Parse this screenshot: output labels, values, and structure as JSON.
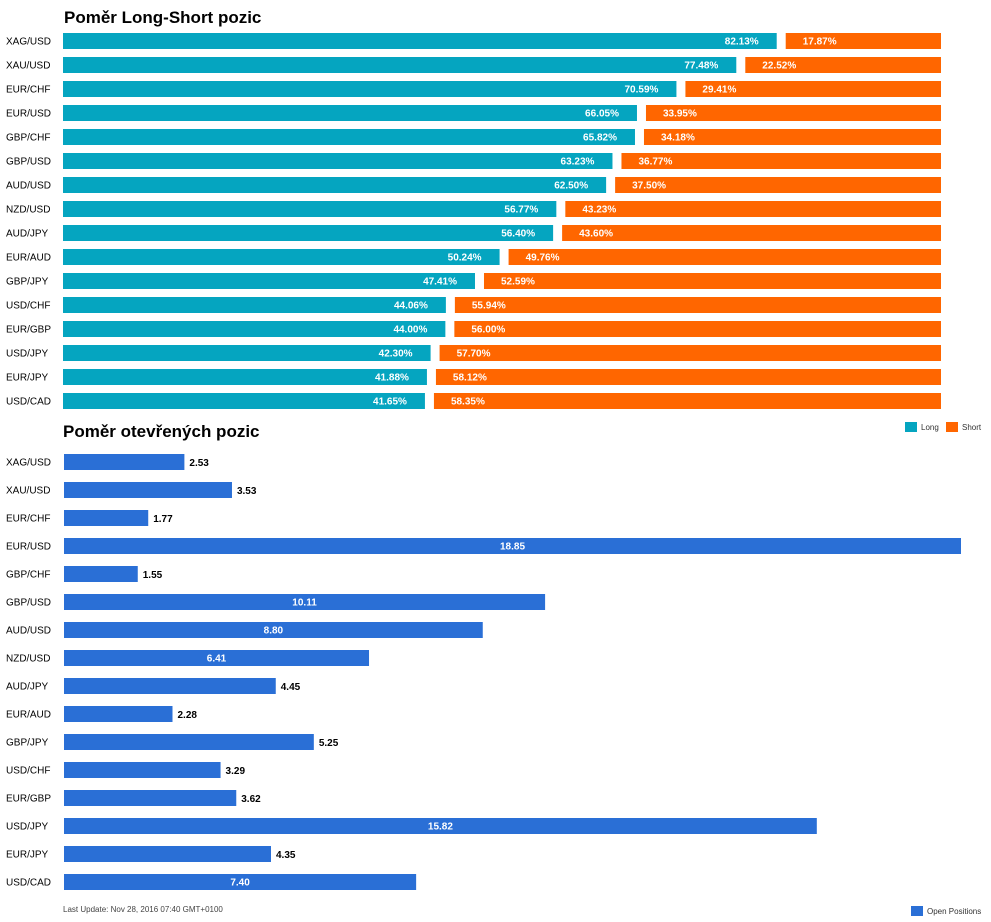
{
  "colors": {
    "long": "#05a5c0",
    "short": "#ff6600",
    "open": "#2a6fd6"
  },
  "chart_data": [
    {
      "type": "bar",
      "stacked": true,
      "orientation": "horizontal",
      "title": "Poměr Long-Short pozic",
      "categories": [
        "XAG/USD",
        "XAU/USD",
        "EUR/CHF",
        "EUR/USD",
        "GBP/CHF",
        "GBP/USD",
        "AUD/USD",
        "NZD/USD",
        "AUD/JPY",
        "EUR/AUD",
        "GBP/JPY",
        "USD/CHF",
        "EUR/GBP",
        "USD/JPY",
        "EUR/JPY",
        "USD/CAD"
      ],
      "series": [
        {
          "name": "Long",
          "values": [
            82.13,
            77.48,
            70.59,
            66.05,
            65.82,
            63.23,
            62.5,
            56.77,
            56.4,
            50.24,
            47.41,
            44.06,
            44.0,
            42.3,
            41.88,
            41.65
          ]
        },
        {
          "name": "Short",
          "values": [
            17.87,
            22.52,
            29.41,
            33.95,
            34.18,
            36.77,
            37.5,
            43.23,
            43.6,
            49.76,
            52.59,
            55.94,
            56.0,
            57.7,
            58.12,
            58.35
          ]
        }
      ],
      "legend": "top-right"
    },
    {
      "type": "bar",
      "orientation": "horizontal",
      "title": "Poměr otevřených pozic",
      "categories": [
        "XAG/USD",
        "XAU/USD",
        "EUR/CHF",
        "EUR/USD",
        "GBP/CHF",
        "GBP/USD",
        "AUD/USD",
        "NZD/USD",
        "AUD/JPY",
        "EUR/AUD",
        "GBP/JPY",
        "USD/CHF",
        "EUR/GBP",
        "USD/JPY",
        "EUR/JPY",
        "USD/CAD"
      ],
      "series": [
        {
          "name": "Open Positions",
          "values": [
            2.53,
            3.53,
            1.77,
            18.85,
            1.55,
            10.11,
            8.8,
            6.41,
            4.45,
            2.28,
            5.25,
            3.29,
            3.62,
            15.82,
            4.35,
            7.4
          ]
        }
      ],
      "legend": "bottom-right"
    }
  ],
  "footer": {
    "last_update": "Last Update: Nov 28, 2016 07:40 GMT+0100"
  }
}
